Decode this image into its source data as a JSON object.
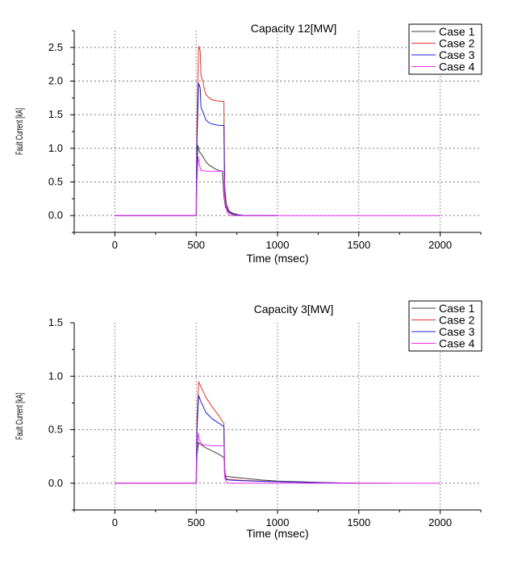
{
  "chart_data": [
    {
      "type": "line",
      "title": "Capacity 12[MW]",
      "xlabel": "Time (msec)",
      "ylabel": "Fault Current [kA]",
      "xlim": [
        -250,
        2250
      ],
      "ylim": [
        -0.25,
        2.75
      ],
      "xticks": [
        0,
        500,
        1000,
        1500,
        2000
      ],
      "yticks": [
        0.0,
        0.5,
        1.0,
        1.5,
        2.0,
        2.5
      ],
      "ytick_labels": [
        "0.0",
        "0.5",
        "1.0",
        "1.5",
        "2.0",
        "2.5"
      ],
      "grid": true,
      "legend": "top-right",
      "series": [
        {
          "name": "Case 1",
          "color": "#404040",
          "x": [
            0,
            500,
            505,
            510,
            520,
            540,
            560,
            580,
            600,
            620,
            640,
            660,
            670,
            680,
            700,
            720,
            740,
            760,
            800,
            1000
          ],
          "y": [
            0,
            0,
            0.7,
            1.05,
            0.95,
            0.88,
            0.8,
            0.75,
            0.72,
            0.69,
            0.67,
            0.66,
            0.3,
            0.12,
            0.05,
            0.02,
            0.01,
            0.005,
            0,
            0
          ]
        },
        {
          "name": "Case 2",
          "color": "#e8302a",
          "x": [
            0,
            500,
            505,
            515,
            525,
            530,
            540,
            550,
            560,
            580,
            600,
            620,
            650,
            670,
            675,
            685,
            700,
            720,
            760,
            800,
            1000
          ],
          "y": [
            0,
            0,
            1.4,
            2.52,
            2.45,
            2.08,
            2.0,
            1.88,
            1.8,
            1.75,
            1.72,
            1.71,
            1.7,
            1.7,
            0.45,
            0.18,
            0.08,
            0.04,
            0.01,
            0,
            0
          ]
        },
        {
          "name": "Case 3",
          "color": "#2020e0",
          "x": [
            0,
            500,
            505,
            515,
            525,
            530,
            540,
            550,
            560,
            580,
            600,
            620,
            650,
            670,
            675,
            685,
            700,
            720,
            760,
            800,
            1000
          ],
          "y": [
            0,
            0,
            1.1,
            1.97,
            1.9,
            1.6,
            1.55,
            1.48,
            1.42,
            1.38,
            1.36,
            1.35,
            1.34,
            1.34,
            0.35,
            0.14,
            0.06,
            0.03,
            0.01,
            0,
            0
          ]
        },
        {
          "name": "Case 4",
          "color": "#f030f0",
          "x": [
            0,
            500,
            505,
            512,
            520,
            530,
            560,
            600,
            650,
            670,
            675,
            690,
            710,
            750,
            800,
            1000,
            2000
          ],
          "y": [
            0,
            0,
            0.5,
            0.88,
            0.75,
            0.67,
            0.66,
            0.66,
            0.66,
            0.66,
            0.25,
            0.05,
            0.0,
            0,
            0,
            0,
            0
          ]
        }
      ]
    },
    {
      "type": "line",
      "title": "Capacity 3[MW]",
      "xlabel": "Time (msec)",
      "ylabel": "Fault Current [kA]",
      "xlim": [
        -250,
        2250
      ],
      "ylim": [
        -0.25,
        1.5
      ],
      "xticks": [
        0,
        500,
        1000,
        1500,
        2000
      ],
      "yticks": [
        0.0,
        0.5,
        1.0,
        1.5
      ],
      "ytick_labels": [
        "0.0",
        "0.5",
        "1.0",
        "1.5"
      ],
      "grid": true,
      "legend": "top-right",
      "series": [
        {
          "name": "Case 1",
          "color": "#404040",
          "x": [
            0,
            500,
            505,
            515,
            530,
            560,
            600,
            640,
            660,
            670,
            680,
            700,
            800,
            900,
            1000,
            1100,
            1200,
            1300,
            1400,
            1500,
            1700
          ],
          "y": [
            0,
            0,
            0.25,
            0.38,
            0.36,
            0.33,
            0.3,
            0.27,
            0.25,
            0.24,
            0.07,
            0.06,
            0.045,
            0.03,
            0.02,
            0.015,
            0.01,
            0.006,
            0.003,
            0.001,
            0
          ]
        },
        {
          "name": "Case 2",
          "color": "#e8302a",
          "x": [
            0,
            500,
            505,
            515,
            530,
            560,
            600,
            640,
            660,
            670,
            675,
            685,
            700,
            750,
            800,
            900,
            1000,
            1100,
            1200,
            1300,
            1400,
            1500
          ],
          "y": [
            0,
            0,
            0.6,
            0.95,
            0.9,
            0.8,
            0.71,
            0.63,
            0.58,
            0.56,
            0.1,
            0.04,
            0.035,
            0.03,
            0.025,
            0.02,
            0.015,
            0.01,
            0.007,
            0.004,
            0.002,
            0
          ]
        },
        {
          "name": "Case 3",
          "color": "#2020e0",
          "x": [
            0,
            500,
            505,
            515,
            530,
            560,
            600,
            640,
            660,
            670,
            675,
            685,
            700,
            750,
            800,
            900,
            1000,
            1100,
            1200,
            1300,
            1400,
            1500
          ],
          "y": [
            0,
            0,
            0.5,
            0.82,
            0.76,
            0.66,
            0.6,
            0.56,
            0.54,
            0.53,
            0.08,
            0.035,
            0.03,
            0.025,
            0.022,
            0.018,
            0.014,
            0.01,
            0.007,
            0.004,
            0.002,
            0
          ]
        },
        {
          "name": "Case 4",
          "color": "#f030f0",
          "x": [
            0,
            500,
            505,
            512,
            520,
            540,
            600,
            650,
            670,
            675,
            690,
            720,
            800,
            1000,
            2000
          ],
          "y": [
            0,
            0,
            0.25,
            0.47,
            0.4,
            0.36,
            0.35,
            0.35,
            0.35,
            0.05,
            0.0,
            0,
            0,
            0,
            0
          ]
        }
      ]
    }
  ]
}
